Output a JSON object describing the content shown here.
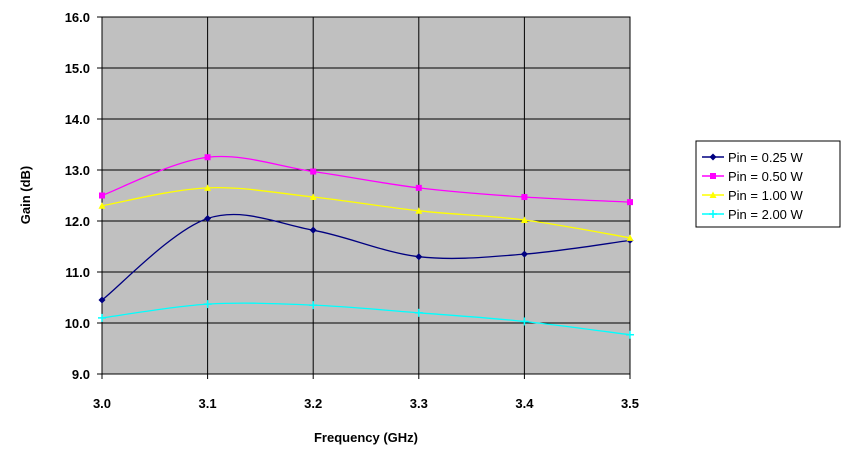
{
  "chart_data": {
    "type": "line",
    "title": "",
    "xlabel": "Frequency (GHz)",
    "ylabel": "Gain (dB)",
    "xlim": [
      3.0,
      3.5
    ],
    "ylim": [
      9.0,
      16.0
    ],
    "x_ticks": [
      "3.0",
      "3.1",
      "3.2",
      "3.3",
      "3.4",
      "3.5"
    ],
    "y_ticks": [
      "9.0",
      "10.0",
      "11.0",
      "12.0",
      "13.0",
      "14.0",
      "15.0",
      "16.0"
    ],
    "x": [
      3.0,
      3.1,
      3.2,
      3.3,
      3.4,
      3.5
    ],
    "grid": true,
    "legend_position": "right",
    "plot_background": "#c0c0c0",
    "series": [
      {
        "name": "Pin = 0.25 W",
        "color": "#000080",
        "marker": "diamond",
        "values": [
          10.45,
          12.05,
          11.82,
          11.3,
          11.35,
          11.62
        ]
      },
      {
        "name": "Pin = 0.50 W",
        "color": "#ff00ff",
        "marker": "square",
        "values": [
          12.5,
          13.25,
          12.97,
          12.65,
          12.47,
          12.37
        ]
      },
      {
        "name": "Pin = 1.00 W",
        "color": "#ffff00",
        "marker": "triangle",
        "values": [
          12.3,
          12.65,
          12.47,
          12.2,
          12.02,
          11.67
        ]
      },
      {
        "name": "Pin = 2.00 W",
        "color": "#00ffff",
        "marker": "cross",
        "values": [
          10.1,
          10.37,
          10.35,
          10.2,
          10.03,
          9.77
        ]
      }
    ]
  }
}
